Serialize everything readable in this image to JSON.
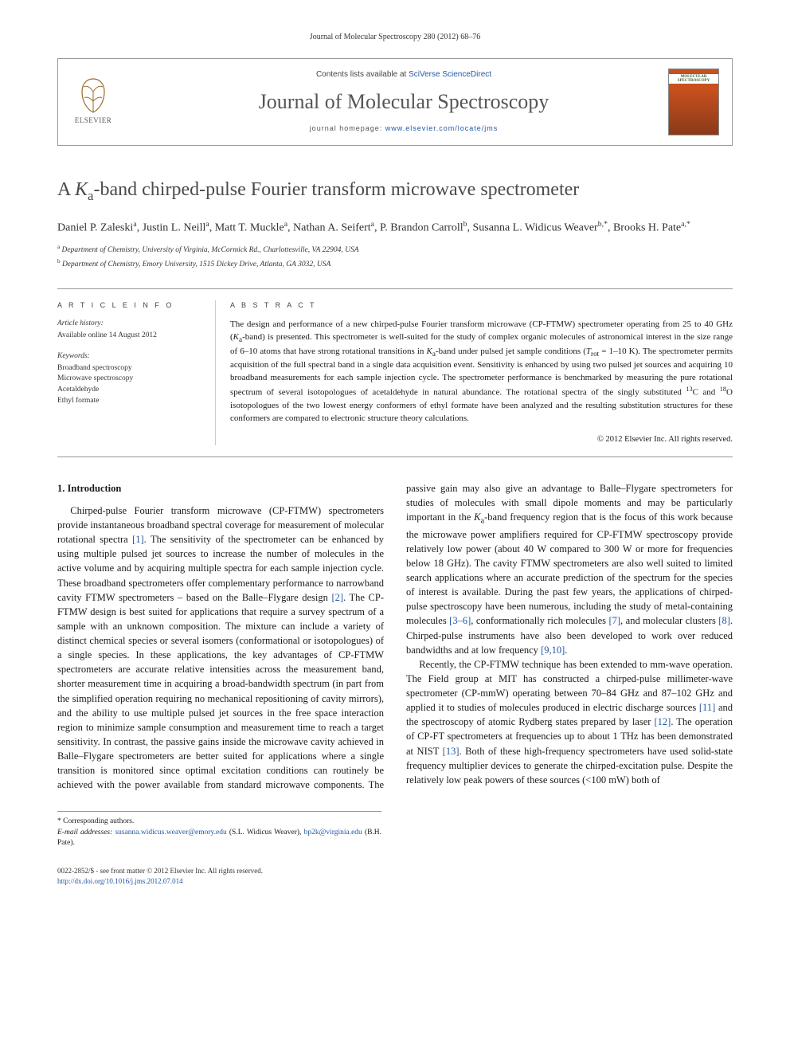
{
  "top_line": "Journal of Molecular Spectroscopy 280 (2012) 68–76",
  "header": {
    "publisher_name": "ELSEVIER",
    "contents_prefix": "Contents lists available at ",
    "contents_link": "SciVerse ScienceDirect",
    "journal_name": "Journal of Molecular Spectroscopy",
    "homepage_prefix": "journal homepage: ",
    "homepage_url": "www.elsevier.com/locate/jms",
    "cover_text": "MOLECULAR SPECTROSCOPY"
  },
  "title_parts": {
    "pre": "A ",
    "ital": "K",
    "sub": "a",
    "rest": "-band chirped-pulse Fourier transform microwave spectrometer"
  },
  "authors_html": "Daniel P. Zaleski|a|, Justin L. Neill|a|, Matt T. Muckle|a|, Nathan A. Seifert|a|, P. Brandon Carroll|b|, Susanna L. Widicus Weaver|b,*|, Brooks H. Pate|a,*|",
  "affiliations": [
    {
      "sup": "a",
      "text": "Department of Chemistry, University of Virginia, McCormick Rd., Charlottesville, VA 22904, USA"
    },
    {
      "sup": "b",
      "text": "Department of Chemistry, Emory University, 1515 Dickey Drive, Atlanta, GA 3032, USA"
    }
  ],
  "article_info": {
    "heading": "A R T I C L E  I N F O",
    "history_label": "Article history:",
    "history_value": "Available online 14 August 2012",
    "keywords_label": "Keywords:",
    "keywords": [
      "Broadband spectroscopy",
      "Microwave spectroscopy",
      "Acetaldehyde",
      "Ethyl formate"
    ]
  },
  "abstract": {
    "heading": "A B S T R A C T",
    "text": "The design and performance of a new chirped-pulse Fourier transform microwave (CP-FTMW) spectrometer operating from 25 to 40 GHz (Ka-band) is presented. This spectrometer is well-suited for the study of complex organic molecules of astronomical interest in the size range of 6–10 atoms that have strong rotational transitions in Ka-band under pulsed jet sample conditions (Trot = 1–10 K). The spectrometer permits acquisition of the full spectral band in a single data acquisition event. Sensitivity is enhanced by using two pulsed jet sources and acquiring 10 broadband measurements for each sample injection cycle. The spectrometer performance is benchmarked by measuring the pure rotational spectrum of several isotopologues of acetaldehyde in natural abundance. The rotational spectra of the singly substituted 13C and 18O isotopologues of the two lowest energy conformers of ethyl formate have been analyzed and the resulting substitution structures for these conformers are compared to electronic structure theory calculations.",
    "copyright": "© 2012 Elsevier Inc. All rights reserved."
  },
  "body": {
    "section_heading": "1. Introduction",
    "para1": "Chirped-pulse Fourier transform microwave (CP-FTMW) spectrometers provide instantaneous broadband spectral coverage for measurement of molecular rotational spectra [1]. The sensitivity of the spectrometer can be enhanced by using multiple pulsed jet sources to increase the number of molecules in the active volume and by acquiring multiple spectra for each sample injection cycle. These broadband spectrometers offer complementary performance to narrowband cavity FTMW spectrometers – based on the Balle–Flygare design [2]. The CP-FTMW design is best suited for applications that require a survey spectrum of a sample with an unknown composition. The mixture can include a variety of distinct chemical species or several isomers (conformational or isotopologues) of a single species. In these applications, the key advantages of CP-FTMW spectrometers are accurate relative intensities across the measurement band, shorter measurement time in acquiring a broad-bandwidth spectrum (in part from the simplified operation requiring no mechanical repositioning of cavity mirrors), and the ability to use multiple pulsed jet sources in the free space interaction region to minimize sample consumption and measurement time to reach a target sensitivity. In contrast, the passive gains inside the microwave cavity achieved in Balle–Flygare spectrometers are better suited for applications where a single transi",
    "para1_cont": "tion is monitored since optimal excitation conditions can routinely be achieved with the power available from standard microwave components. The passive gain may also give an advantage to Balle–Flygare spectrometers for studies of molecules with small dipole moments and may be particularly important in the Ka-band frequency region that is the focus of this work because the microwave power amplifiers required for CP-FTMW spectroscopy provide relatively low power (about 40 W compared to 300 W or more for frequencies below 18 GHz). The cavity FTMW spectrometers are also well suited to limited search applications where an accurate prediction of the spectrum for the species of interest is available. During the past few years, the applications of chirped-pulse spectroscopy have been numerous, including the study of metal-containing molecules [3–6], conformationally rich molecules [7], and molecular clusters [8]. Chirped-pulse instruments have also been developed to work over reduced bandwidths and at low frequency [9,10].",
    "para2": "Recently, the CP-FTMW technique has been extended to mm-wave operation. The Field group at MIT has constructed a chirped-pulse millimeter-wave spectrometer (CP-mmW) operating between 70–84 GHz and 87–102 GHz and applied it to studies of molecules produced in electric discharge sources [11] and the spectroscopy of atomic Rydberg states prepared by laser [12]. The operation of CP-FT spectrometers at frequencies up to about 1 THz has been demonstrated at NIST [13]. Both of these high-frequency spectrometers have used solid-state frequency multiplier devices to generate the chirped-excitation pulse. Despite the relatively low peak powers of these sources (<100 mW) both of"
  },
  "footnote": {
    "corresponding": "* Corresponding authors.",
    "email_label": "E-mail addresses:",
    "email1": "susanna.widicus.weaver@emory.edu",
    "email1_who": " (S.L. Widicus Weaver), ",
    "email2": "bp2k@virginia.edu",
    "email2_who": " (B.H. Pate)."
  },
  "bottom": {
    "issn_line": "0022-2852/$ - see front matter © 2012 Elsevier Inc. All rights reserved.",
    "doi": "http://dx.doi.org/10.1016/j.jms.2012.07.014"
  },
  "colors": {
    "link": "#2157a4",
    "rule": "#999999",
    "cover_top": "#c8501e",
    "cover_bottom": "#8a3a1a"
  }
}
